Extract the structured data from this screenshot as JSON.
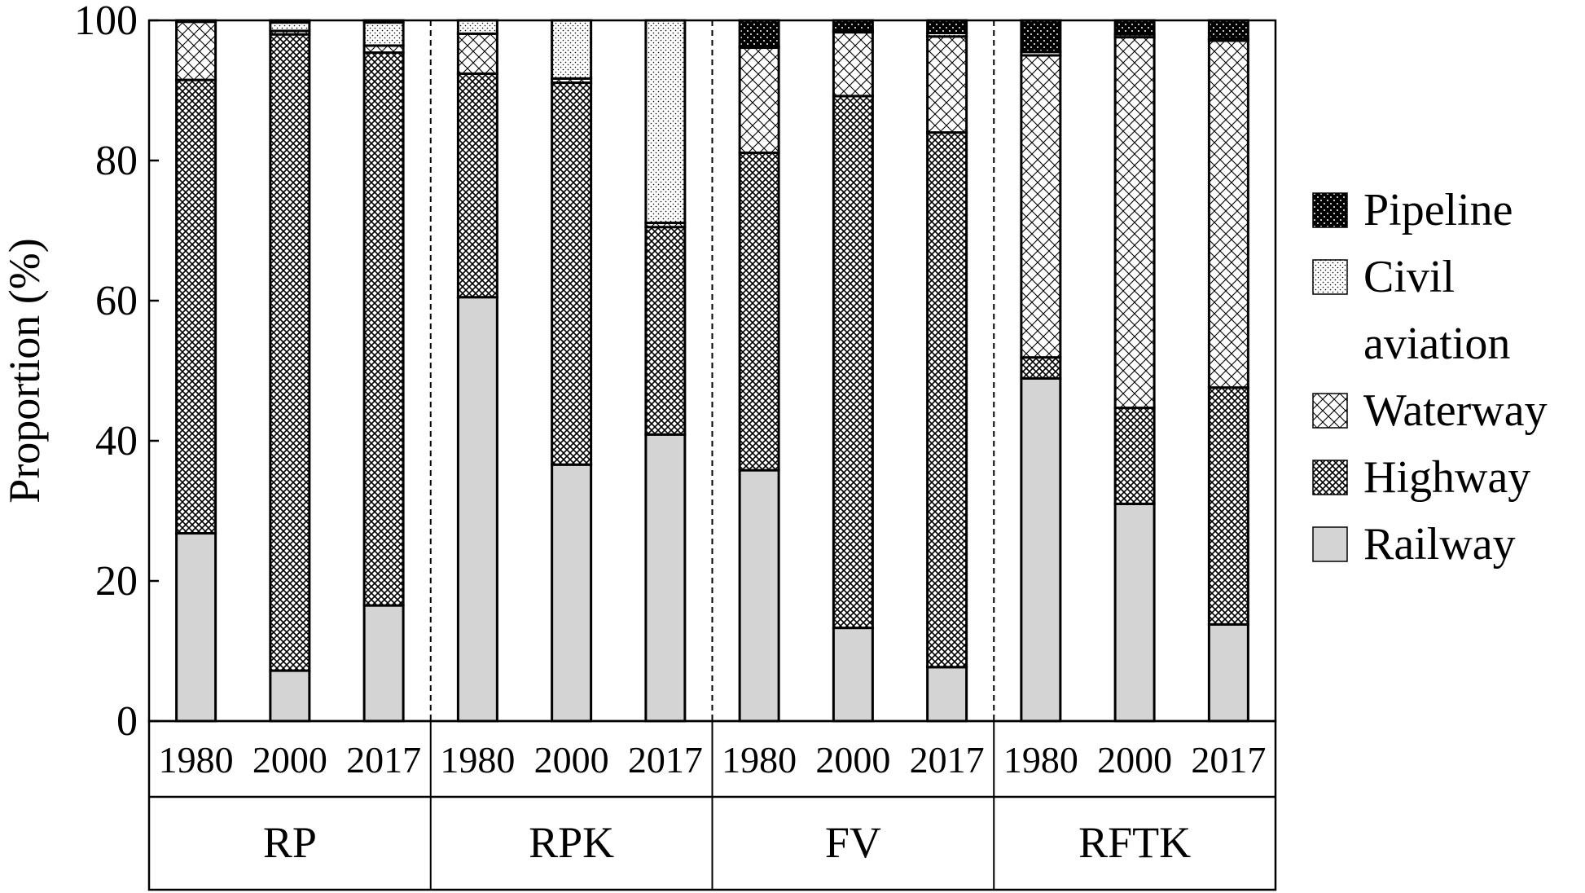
{
  "chart_data": {
    "type": "bar",
    "stacked": true,
    "ylabel": "Proportion (%)",
    "ylim": [
      0,
      100
    ],
    "yticks": [
      "0",
      "20",
      "40",
      "60",
      "80",
      "100"
    ],
    "groups": [
      {
        "label": "RP",
        "categories": [
          "1980",
          "2000",
          "2017"
        ]
      },
      {
        "label": "RPK",
        "categories": [
          "1980",
          "2000",
          "2017"
        ]
      },
      {
        "label": "FV",
        "categories": [
          "1980",
          "2000",
          "2017"
        ]
      },
      {
        "label": "RFTK",
        "categories": [
          "1980",
          "2000",
          "2017"
        ]
      }
    ],
    "series": [
      {
        "name": "Railway",
        "pattern": "railway",
        "values": [
          26.8,
          7.2,
          16.5,
          60.5,
          36.6,
          40.9,
          35.8,
          13.3,
          7.7,
          48.9,
          31.0,
          13.8
        ]
      },
      {
        "name": "Highway",
        "pattern": "highway",
        "values": [
          64.7,
          90.8,
          78.9,
          31.9,
          54.5,
          29.6,
          45.3,
          75.9,
          76.3,
          3.0,
          13.7,
          33.8
        ]
      },
      {
        "name": "Waterway",
        "pattern": "waterway",
        "values": [
          8.3,
          0.5,
          1.0,
          5.7,
          0.6,
          0.6,
          15.0,
          9.1,
          13.7,
          43.1,
          52.9,
          49.5
        ]
      },
      {
        "name": "Civil aviation",
        "pattern": "civil",
        "values": [
          0.2,
          1.2,
          3.3,
          1.9,
          8.3,
          28.9,
          0.2,
          0.2,
          0.5,
          0.5,
          0.4,
          0.3
        ]
      },
      {
        "name": "Pipeline",
        "pattern": "pipeline",
        "values": [
          0.0,
          0.3,
          0.3,
          0.0,
          0.0,
          0.0,
          3.7,
          1.5,
          1.8,
          4.5,
          2.0,
          2.6
        ]
      }
    ],
    "legend": {
      "position": "right",
      "order": [
        4,
        3,
        2,
        1,
        0
      ],
      "labels": [
        "Pipeline",
        "Civil aviation",
        "Waterway",
        "Highway",
        "Railway"
      ]
    },
    "colors": {
      "railway_fill": "#d4d4d4",
      "outline": "#000000"
    }
  }
}
